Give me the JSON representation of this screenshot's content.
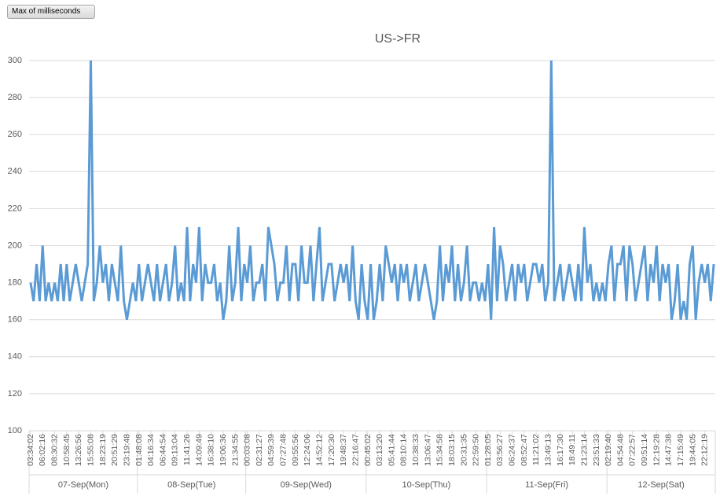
{
  "field_button": "Max of milliseconds",
  "chart_data": {
    "type": "line",
    "title": "US->FR",
    "color": "#5b9bd5",
    "grid": true,
    "ylim": [
      100,
      300
    ],
    "yticks": [
      100,
      120,
      140,
      160,
      180,
      200,
      220,
      240,
      260,
      280,
      300
    ],
    "groups": [
      {
        "label": "07-Sep(Mon)",
        "categories": [
          "03:34:02",
          null,
          null,
          null,
          "06:02:16",
          null,
          null,
          null,
          "08:30:32",
          null,
          null,
          null,
          "10:58:45",
          null,
          null,
          null,
          "13:26:56",
          null,
          null,
          null,
          "15:55:08",
          null,
          null,
          null,
          "18:23:19",
          null,
          null,
          null,
          "20:51:29",
          null,
          null,
          null,
          "23:19:48",
          null,
          null,
          null
        ],
        "values": [
          180,
          170,
          190,
          170,
          200,
          170,
          180,
          170,
          180,
          170,
          190,
          170,
          190,
          170,
          180,
          190,
          180,
          170,
          180,
          190,
          300,
          170,
          180,
          200,
          180,
          190,
          170,
          190,
          180,
          170,
          200,
          170,
          160,
          170,
          180,
          170
        ]
      },
      {
        "label": "08-Sep(Tue)",
        "categories": [
          "01:48:08",
          null,
          null,
          null,
          "04:16:34",
          null,
          null,
          null,
          "06:44:54",
          null,
          null,
          null,
          "09:13:04",
          null,
          null,
          null,
          "11:41:26",
          null,
          null,
          null,
          "14:09:49",
          null,
          null,
          null,
          "16:38:10",
          null,
          null,
          null,
          "19:06:36",
          null,
          null,
          null,
          "21:34:55",
          null,
          null,
          null
        ],
        "values": [
          190,
          170,
          180,
          190,
          180,
          170,
          190,
          170,
          180,
          190,
          170,
          180,
          200,
          170,
          180,
          170,
          210,
          170,
          190,
          180,
          210,
          170,
          190,
          180,
          180,
          190,
          170,
          180,
          160,
          170,
          200,
          170,
          180,
          210,
          170,
          190
        ]
      },
      {
        "label": "09-Sep(Wed)",
        "categories": [
          "00:03:08",
          null,
          null,
          null,
          "02:31:27",
          null,
          null,
          null,
          "04:59:39",
          null,
          null,
          null,
          "07:27:48",
          null,
          null,
          null,
          "09:55:56",
          null,
          null,
          null,
          "12:24:06",
          null,
          null,
          null,
          "14:52:12",
          null,
          null,
          null,
          "17:20:30",
          null,
          null,
          null,
          "19:48:37",
          null,
          null,
          null,
          "22:16:47",
          null,
          null,
          null
        ],
        "values": [
          180,
          200,
          170,
          180,
          180,
          190,
          170,
          210,
          200,
          190,
          170,
          180,
          180,
          200,
          170,
          190,
          190,
          170,
          200,
          180,
          180,
          200,
          170,
          190,
          210,
          170,
          180,
          190,
          190,
          170,
          180,
          190,
          180,
          190,
          170,
          200,
          170,
          160,
          190,
          170
        ]
      },
      {
        "label": "10-Sep(Thu)",
        "categories": [
          "00:45:02",
          null,
          null,
          null,
          "03:13:20",
          null,
          null,
          null,
          "05:41:44",
          null,
          null,
          null,
          "08:10:14",
          null,
          null,
          null,
          "10:38:33",
          null,
          null,
          null,
          "13:06:47",
          null,
          null,
          null,
          "15:34:58",
          null,
          null,
          null,
          "18:03:15",
          null,
          null,
          null,
          "20:31:35",
          null,
          null,
          null,
          "22:59:50",
          null,
          null,
          null
        ],
        "values": [
          160,
          190,
          160,
          170,
          190,
          170,
          200,
          190,
          180,
          190,
          170,
          190,
          180,
          190,
          170,
          180,
          190,
          170,
          180,
          190,
          180,
          170,
          160,
          170,
          200,
          170,
          190,
          180,
          200,
          170,
          190,
          170,
          180,
          200,
          170,
          180,
          180,
          170,
          180,
          170
        ]
      },
      {
        "label": "11-Sep(Fri)",
        "categories": [
          "01:28:05",
          null,
          null,
          null,
          "03:56:27",
          null,
          null,
          null,
          "06:24:37",
          null,
          null,
          null,
          "08:52:47",
          null,
          null,
          null,
          "11:21:02",
          null,
          null,
          null,
          "13:49:13",
          null,
          null,
          null,
          "16:17:30",
          null,
          null,
          null,
          "18:49:11",
          null,
          null,
          null,
          "21:23:14",
          null,
          null,
          null,
          "23:51:33",
          null,
          null,
          null
        ],
        "values": [
          190,
          160,
          210,
          170,
          200,
          190,
          170,
          180,
          190,
          170,
          190,
          180,
          190,
          170,
          180,
          190,
          190,
          180,
          190,
          170,
          180,
          300,
          170,
          180,
          190,
          170,
          180,
          190,
          180,
          170,
          190,
          170,
          210,
          180,
          190,
          170,
          180,
          170,
          180,
          170
        ]
      },
      {
        "label": "12-Sep(Sat)",
        "categories": [
          "02:19:40",
          null,
          null,
          null,
          "04:54:48",
          null,
          null,
          null,
          "07:22:57",
          null,
          null,
          null,
          "09:51:14",
          null,
          null,
          null,
          "12:19:28",
          null,
          null,
          null,
          "14:47:38",
          null,
          null,
          null,
          "17:15:49",
          null,
          null,
          null,
          "19:44:05",
          null,
          null,
          null,
          "22:12:19",
          null,
          null,
          null
        ],
        "values": [
          190,
          200,
          170,
          190,
          190,
          200,
          170,
          200,
          190,
          170,
          180,
          190,
          200,
          170,
          190,
          180,
          200,
          170,
          190,
          180,
          190,
          160,
          170,
          190,
          160,
          170,
          160,
          190,
          200,
          160,
          180,
          190,
          180,
          190,
          170,
          190
        ]
      }
    ]
  }
}
